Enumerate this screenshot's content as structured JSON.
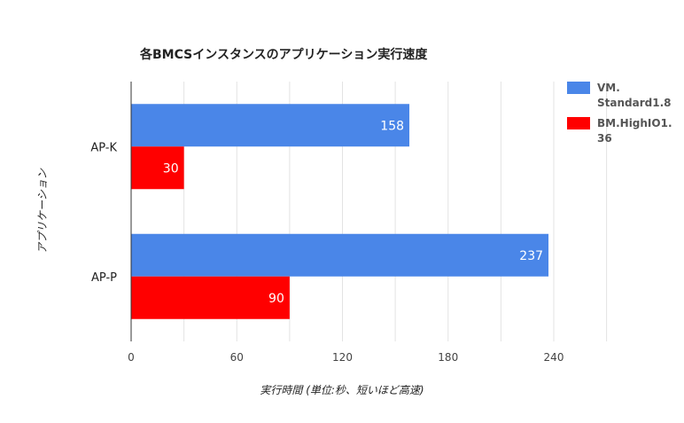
{
  "chart_data": {
    "type": "bar",
    "orientation": "horizontal",
    "title": "各BMCSインスタンスのアプリケーション実行速度",
    "xlabel": "実行時間 (単位:秒、短いほど高速)",
    "ylabel": "アプリケーション",
    "categories": [
      "AP-K",
      "AP-P"
    ],
    "series": [
      {
        "name": "VM.Standard1.8",
        "legend_lines": [
          "VM.",
          "Standard1.8"
        ],
        "color": "#4a86e8",
        "values": [
          158,
          237
        ]
      },
      {
        "name": "BM.HighIO1.36",
        "legend_lines": [
          "BM.HighIO1.",
          "36"
        ],
        "color": "#ff0000",
        "values": [
          30,
          90
        ]
      }
    ],
    "xlim": [
      0,
      240
    ],
    "xticks": [
      0,
      60,
      120,
      180,
      240
    ],
    "grid": true,
    "legend_position": "right"
  }
}
